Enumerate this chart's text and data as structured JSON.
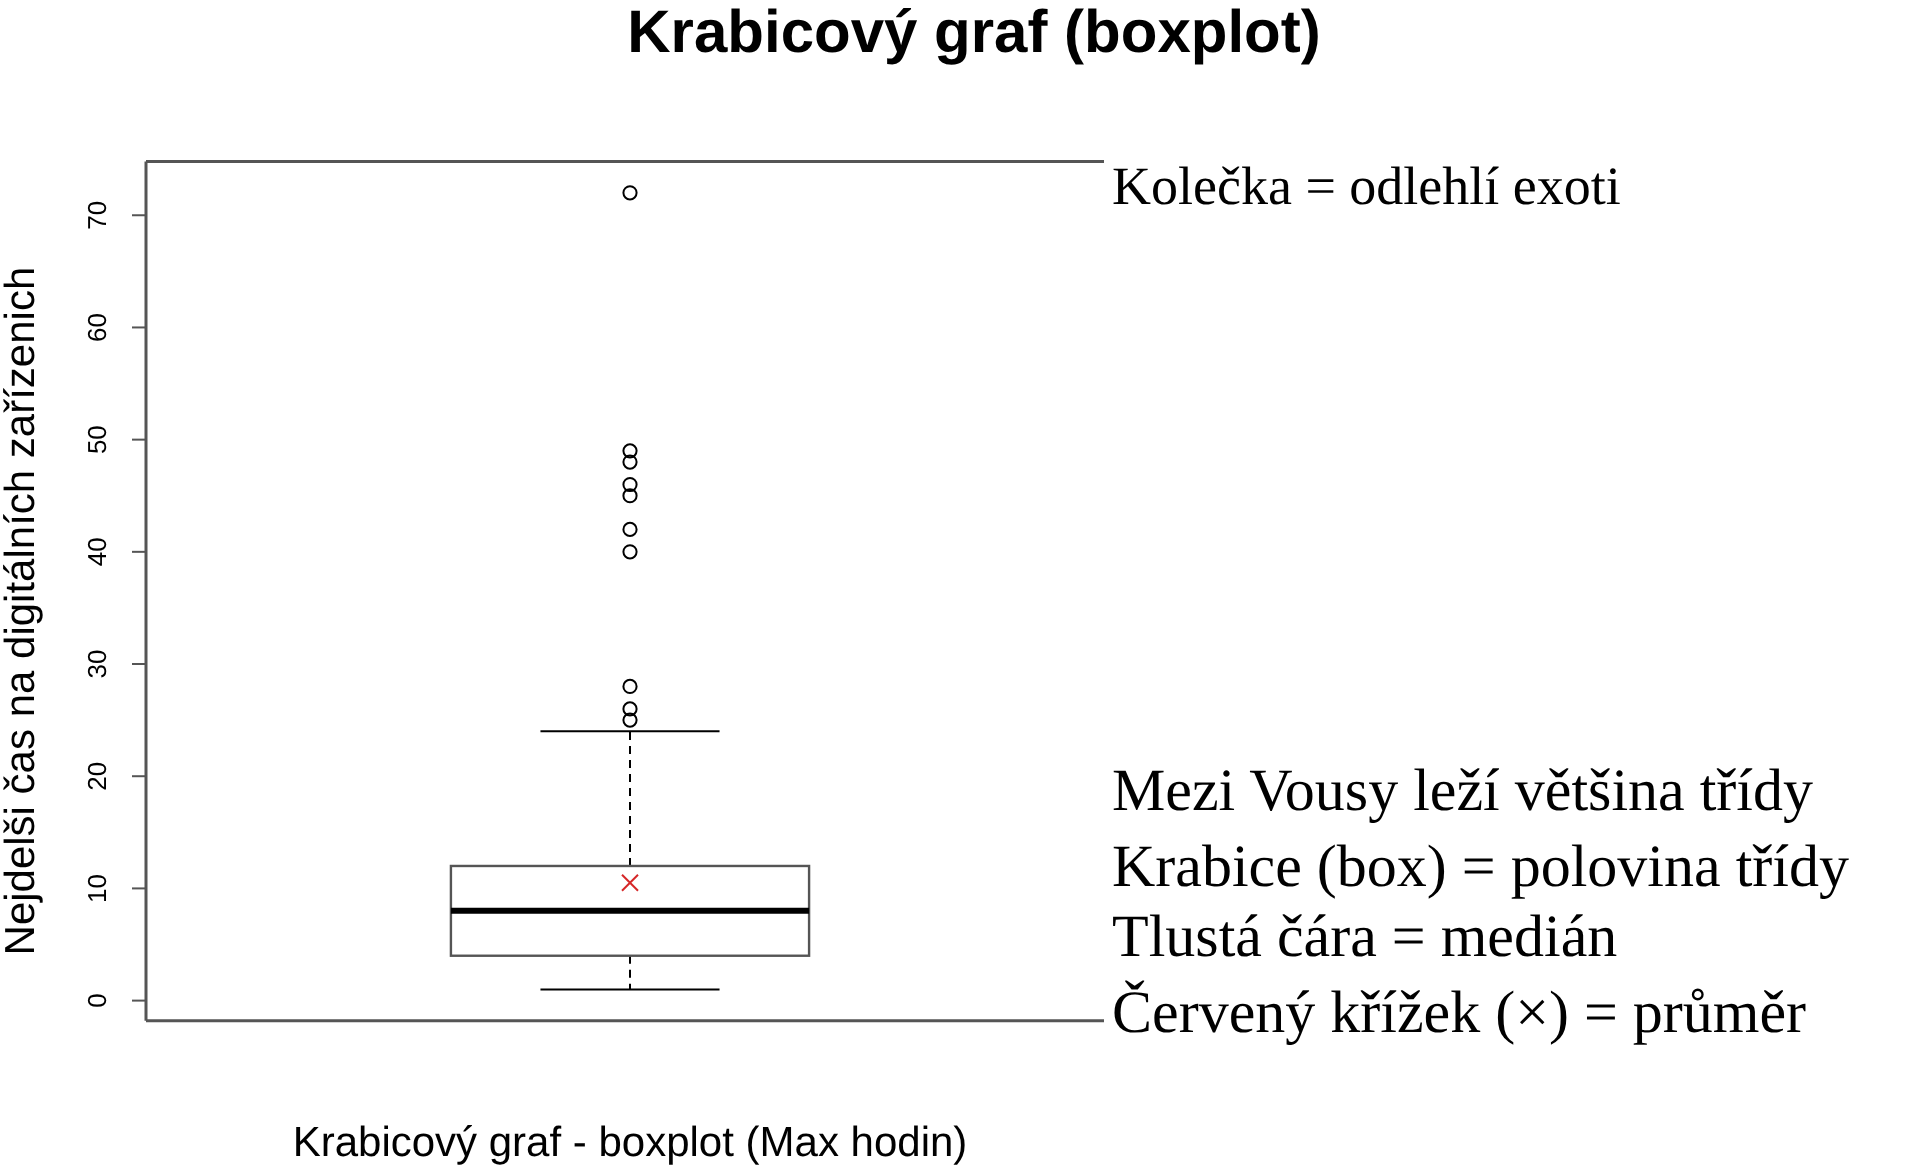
{
  "chart_data": {
    "type": "box",
    "title": "Krabicový graf (boxplot)",
    "xlabel": "Krabicový graf - boxplot (Max hodin)",
    "ylabel": "Nejdelši čas na digitálních zařízenich",
    "categories": [
      null
    ],
    "boxes": [
      {
        "low": 1,
        "q1": 4,
        "median": 8,
        "q3": 12,
        "high": 24,
        "mean": 10.5,
        "outliers": [
          72,
          49,
          48,
          46,
          45,
          42,
          40,
          28,
          26,
          25
        ]
      }
    ],
    "ylim": [
      -1.8,
      74.8
    ],
    "yticks": [
      0,
      10,
      20,
      30,
      40,
      50,
      60,
      70
    ],
    "annotations": [
      "Kolečka = odlehlí exoti",
      "Mezi Vousy leží většina třídy",
      "Krabice (box) = polovina třídy",
      "Tlustá čára = medián",
      "Červený křížek (×) = průměr"
    ]
  }
}
